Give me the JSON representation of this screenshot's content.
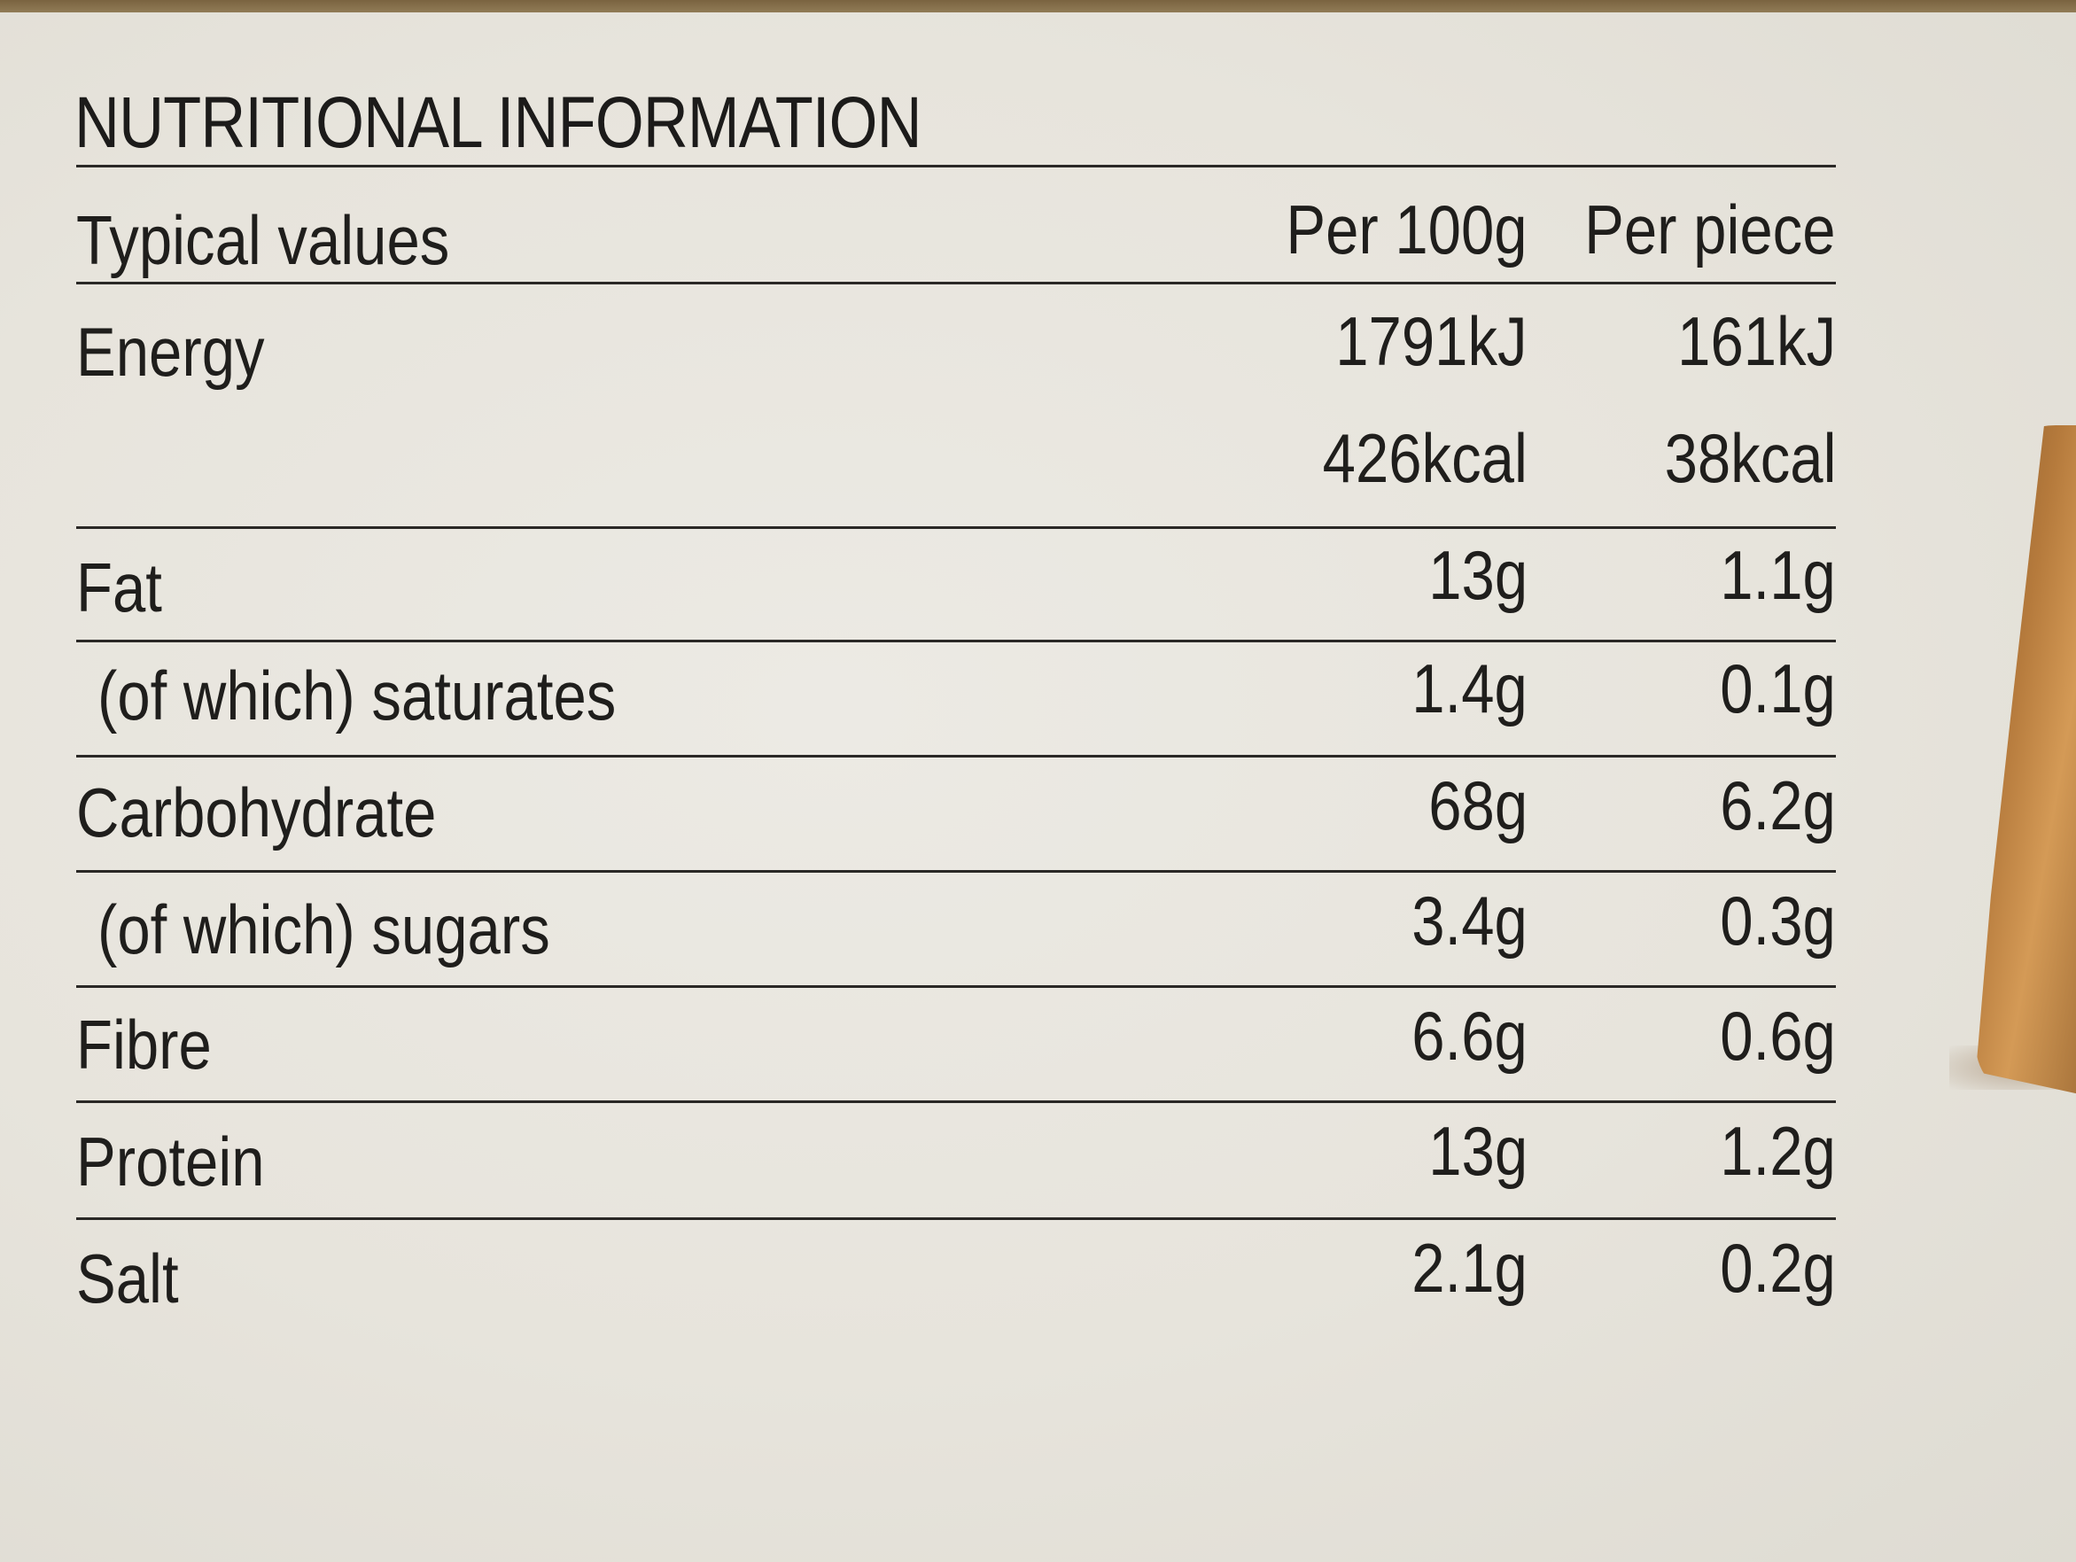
{
  "title": "NUTRITIONAL INFORMATION",
  "header": {
    "label": "Typical values",
    "per100g": "Per 100g",
    "perPiece": "Per piece"
  },
  "rows": [
    {
      "label": "Energy",
      "per100g": "1791kJ",
      "perPiece": "161kJ"
    },
    {
      "label": "",
      "per100g": "426kcal",
      "perPiece": "38kcal"
    },
    {
      "label": "Fat",
      "per100g": "13g",
      "perPiece": "1.1g"
    },
    {
      "label": "(of which) saturates",
      "per100g": "1.4g",
      "perPiece": "0.1g"
    },
    {
      "label": "Carbohydrate",
      "per100g": "68g",
      "perPiece": "6.2g"
    },
    {
      "label": "(of which) sugars",
      "per100g": "3.4g",
      "perPiece": "0.3g"
    },
    {
      "label": "Fibre",
      "per100g": "6.6g",
      "perPiece": "0.6g"
    },
    {
      "label": "Protein",
      "per100g": "13g",
      "perPiece": "1.2g"
    },
    {
      "label": "Salt",
      "per100g": "2.1g",
      "perPiece": "0.2g"
    }
  ]
}
